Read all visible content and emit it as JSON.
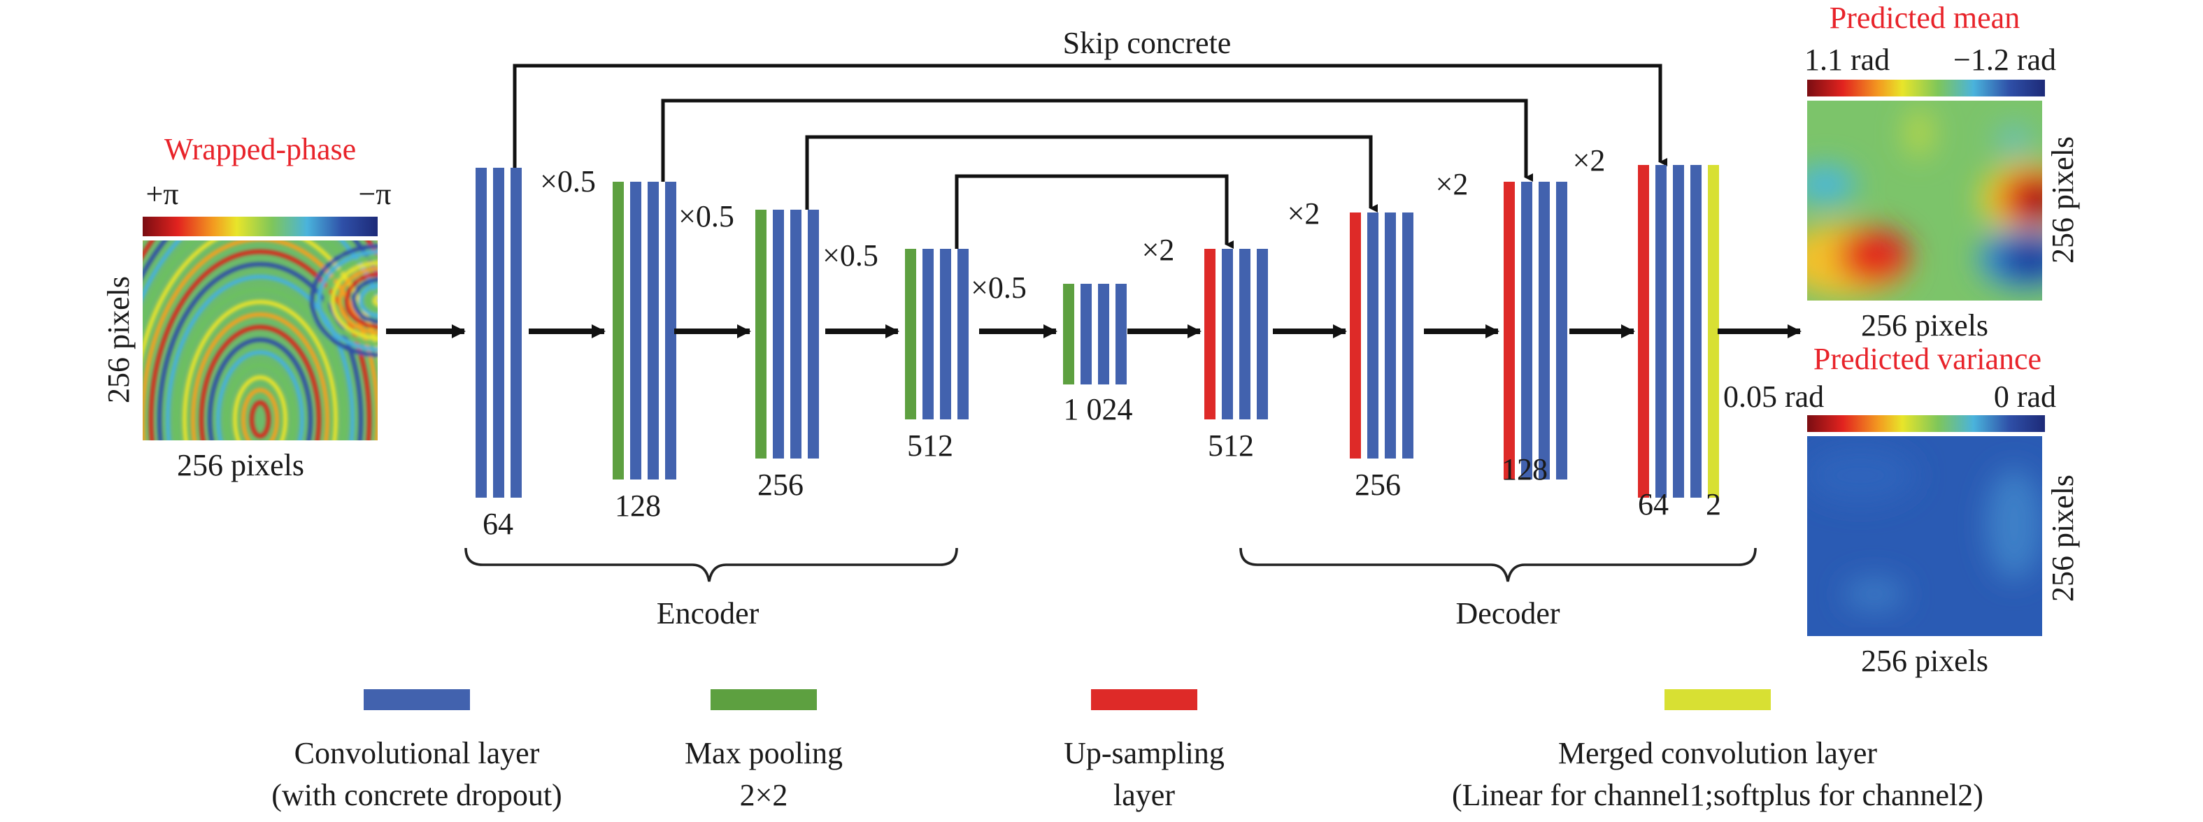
{
  "skip_label": "Skip concrete",
  "input": {
    "title": "Wrapped-phase",
    "cb_left": "+π",
    "cb_right": "−π",
    "side_label": "256 pixels",
    "bottom_label": "256 pixels"
  },
  "encoder_label": "Encoder",
  "decoder_label": "Decoder",
  "layers": [
    {
      "channels": "64",
      "scale": "",
      "types": [
        "conv",
        "conv",
        "conv"
      ]
    },
    {
      "channels": "128",
      "scale": "×0.5",
      "types": [
        "pool",
        "conv",
        "conv",
        "conv"
      ]
    },
    {
      "channels": "256",
      "scale": "×0.5",
      "types": [
        "pool",
        "conv",
        "conv",
        "conv"
      ]
    },
    {
      "channels": "512",
      "scale": "×0.5",
      "types": [
        "pool",
        "conv",
        "conv",
        "conv"
      ]
    },
    {
      "channels": "1 024",
      "scale": "×0.5",
      "types": [
        "pool",
        "conv",
        "conv",
        "conv"
      ]
    },
    {
      "channels": "512",
      "scale": "×2",
      "types": [
        "up",
        "conv",
        "conv",
        "conv"
      ]
    },
    {
      "channels": "256",
      "scale": "×2",
      "types": [
        "up",
        "conv",
        "conv",
        "conv"
      ]
    },
    {
      "channels": "128",
      "scale": "×2",
      "types": [
        "up",
        "conv",
        "conv",
        "conv"
      ]
    },
    {
      "channels": "64",
      "channels2": "2",
      "scale": "×2",
      "types": [
        "up",
        "conv",
        "conv",
        "conv",
        "merged"
      ]
    }
  ],
  "outputs": {
    "mean": {
      "title": "Predicted mean",
      "cb_left": "1.1 rad",
      "cb_right": "−1.2 rad",
      "side_label": "256 pixels",
      "bottom_label": "256 pixels"
    },
    "variance": {
      "title": "Predicted variance",
      "cb_left": "0.05 rad",
      "cb_right": "0 rad",
      "side_label": "256 pixels",
      "bottom_label": "256 pixels"
    }
  },
  "legend": [
    {
      "type": "conv",
      "line1": "Convolutional layer",
      "line2": "(with concrete dropout)"
    },
    {
      "type": "pool",
      "line1": "Max pooling",
      "line2": "2×2"
    },
    {
      "type": "up",
      "line1": "Up-sampling",
      "line2": "layer"
    },
    {
      "type": "merged",
      "line1": "Merged convolution layer",
      "line2": "(Linear for channel1;softplus for channel2)"
    }
  ],
  "colors": {
    "conv": "#4262ae",
    "pool": "#5da040",
    "up": "#de2a28",
    "merged": "#d8e033",
    "title": "#e8232a"
  }
}
